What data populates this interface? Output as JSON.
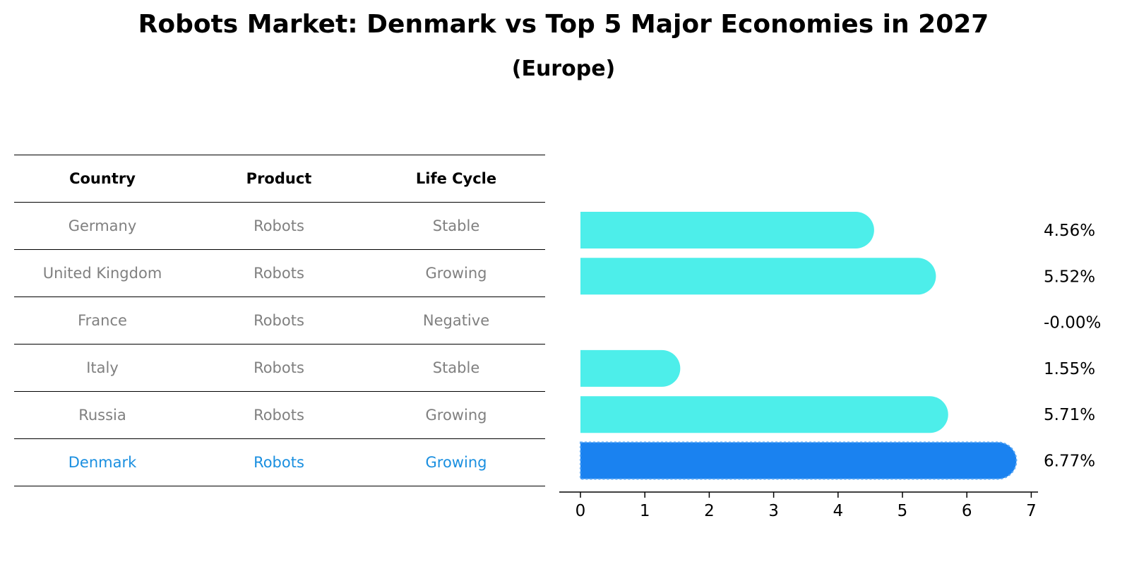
{
  "title": "Robots Market: Denmark vs Top 5 Major Economies in 2027",
  "subtitle": "(Europe)",
  "table": {
    "headers": [
      "Country",
      "Product",
      "Life Cycle"
    ],
    "rows": [
      [
        "Germany",
        "Robots",
        "Stable"
      ],
      [
        "United Kingdom",
        "Robots",
        "Growing"
      ],
      [
        "France",
        "Robots",
        "Negative"
      ],
      [
        "Italy",
        "Robots",
        "Stable"
      ],
      [
        "Russia",
        "Robots",
        "Growing"
      ],
      [
        "Denmark",
        "Robots",
        "Growing"
      ]
    ],
    "highlight_row": 5
  },
  "colors": {
    "bar": "#4deeea",
    "highlight_bar": "#1a82f0",
    "highlight_text": "#1a8fe0",
    "muted_text": "#808080"
  },
  "chart_data": {
    "type": "bar",
    "orientation": "horizontal",
    "categories": [
      "Germany",
      "United Kingdom",
      "France",
      "Italy",
      "Russia",
      "Denmark"
    ],
    "values": [
      4.56,
      5.52,
      -0.0,
      1.55,
      5.71,
      6.77
    ],
    "value_labels": [
      "4.56%",
      "5.52%",
      "-0.00%",
      "1.55%",
      "5.71%",
      "6.77%"
    ],
    "highlight_index": 5,
    "xlim": [
      0,
      7
    ],
    "xticks": [
      "0",
      "1",
      "2",
      "3",
      "4",
      "5",
      "6",
      "7"
    ],
    "grid": false
  }
}
